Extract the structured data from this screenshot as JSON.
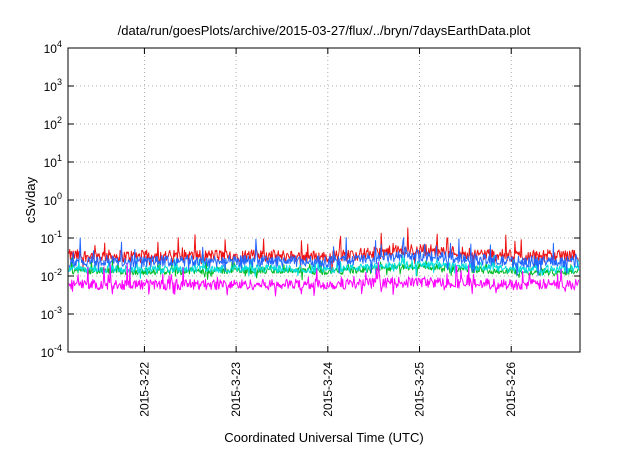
{
  "chart_data": {
    "type": "line",
    "title": "/data/run/goesPlots/archive/2015-03-27/flux/../bryn/7daysEarthData.plot",
    "xlabel": "Coordinated Universal Time (UTC)",
    "ylabel": "cSv/day",
    "y_scale": "log",
    "ylim": [
      0.0001,
      10000
    ],
    "y_ticks": [
      {
        "base": "10",
        "exp": "-4",
        "value": 0.0001
      },
      {
        "base": "10",
        "exp": "-3",
        "value": 0.001
      },
      {
        "base": "10",
        "exp": "-2",
        "value": 0.01
      },
      {
        "base": "10",
        "exp": "-1",
        "value": 0.1
      },
      {
        "base": "10",
        "exp": "0",
        "value": 1
      },
      {
        "base": "10",
        "exp": "1",
        "value": 10
      },
      {
        "base": "10",
        "exp": "2",
        "value": 100
      },
      {
        "base": "10",
        "exp": "3",
        "value": 1000
      },
      {
        "base": "10",
        "exp": "4",
        "value": 10000
      }
    ],
    "xlim": [
      "2015-03-21T04:00",
      "2015-03-26T18:00"
    ],
    "x_ticks": [
      "2015-3-22",
      "2015-3-23",
      "2015-3-24",
      "2015-3-25",
      "2015-3-26"
    ],
    "grid": true,
    "series_colors": [
      "#ee1111",
      "#00bb22",
      "#00dddd",
      "#2266ff",
      "#ff00ff"
    ],
    "series": [
      {
        "color": "#ee1111",
        "x": [
          "2015-03-21",
          "2015-03-22",
          "2015-03-23",
          "2015-03-24",
          "2015-03-25",
          "2015-03-26"
        ],
        "values": [
          0.035,
          0.033,
          0.035,
          0.032,
          0.05,
          0.034
        ]
      },
      {
        "color": "#00bb22",
        "x": [
          "2015-03-21",
          "2015-03-22",
          "2015-03-23",
          "2015-03-24",
          "2015-03-25",
          "2015-03-26"
        ],
        "values": [
          0.014,
          0.013,
          0.014,
          0.013,
          0.018,
          0.013
        ]
      },
      {
        "color": "#00dddd",
        "x": [
          "2015-03-21",
          "2015-03-22",
          "2015-03-23",
          "2015-03-24",
          "2015-03-25",
          "2015-03-26"
        ],
        "values": [
          0.016,
          0.015,
          0.016,
          0.015,
          0.02,
          0.015
        ]
      },
      {
        "color": "#2266ff",
        "x": [
          "2015-03-21",
          "2015-03-22",
          "2015-03-23",
          "2015-03-24",
          "2015-03-25",
          "2015-03-26"
        ],
        "values": [
          0.025,
          0.024,
          0.025,
          0.024,
          0.035,
          0.024
        ]
      },
      {
        "color": "#ff00ff",
        "x": [
          "2015-03-21",
          "2015-03-22",
          "2015-03-23",
          "2015-03-24",
          "2015-03-25",
          "2015-03-26"
        ],
        "values": [
          0.006,
          0.006,
          0.006,
          0.006,
          0.007,
          0.006
        ]
      }
    ]
  }
}
